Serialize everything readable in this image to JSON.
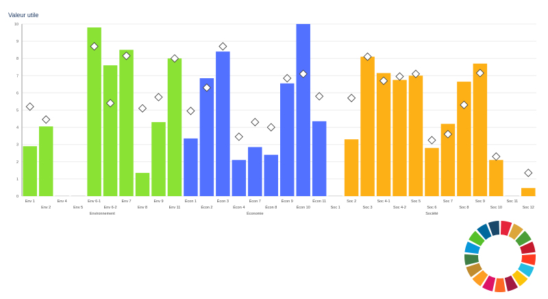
{
  "chart_data": {
    "type": "bar",
    "title": "Valeur utile",
    "ylim": [
      0,
      10
    ],
    "yticks": [
      0,
      1,
      2,
      3,
      4,
      5,
      6,
      7,
      8,
      9,
      10
    ],
    "grid": true,
    "categories": [
      "Env 1",
      "Env 2",
      "Env 4",
      "Env 5",
      "Env 6-1",
      "Env 6-2",
      "Env 7",
      "Env 8",
      "Env 9",
      "Env 11",
      "Écon 1",
      "Écon 2",
      "Écon 3",
      "Écon 4",
      "Écon 7",
      "Écon 8",
      "Écon 9",
      "Écon 10",
      "Écon 11",
      "Soc 1",
      "Soc 2",
      "Soc 3",
      "Soc 4-1",
      "Soc 4-2",
      "Soc 5",
      "Soc 6",
      "Soc 7",
      "Soc 8",
      "Soc 9",
      "Soc 10",
      "Soc 11",
      "Soc 12"
    ],
    "groups": [
      {
        "name": "Environnement",
        "count": 10,
        "color": "#8ae234"
      },
      {
        "name": "Économie",
        "count": 9,
        "color": "#5271ff"
      },
      {
        "name": "Société",
        "count": 13,
        "color": "#fdb015"
      }
    ],
    "bars": [
      2.9,
      4.05,
      0,
      0,
      9.8,
      7.6,
      8.5,
      1.35,
      4.3,
      8.0,
      3.35,
      6.85,
      8.4,
      2.1,
      2.85,
      2.4,
      6.55,
      10,
      4.35,
      0,
      3.3,
      8.1,
      7.15,
      6.75,
      7.0,
      2.8,
      4.2,
      6.65,
      7.7,
      2.1,
      0,
      0.47
    ],
    "markers": [
      5.2,
      4.45,
      null,
      null,
      8.7,
      5.4,
      8.15,
      5.1,
      5.75,
      8.0,
      4.95,
      6.3,
      8.7,
      3.45,
      4.3,
      4.0,
      6.85,
      7.1,
      5.8,
      null,
      5.7,
      8.1,
      6.7,
      6.95,
      7.1,
      3.25,
      3.6,
      5.3,
      7.15,
      2.3,
      null,
      1.35
    ]
  },
  "logo": {
    "colors": [
      "#e5243b",
      "#dda63a",
      "#4c9f38",
      "#c5192d",
      "#ff3a21",
      "#26bde2",
      "#fcc30b",
      "#a21942",
      "#fd6925",
      "#dd1367",
      "#fd9d24",
      "#bf8b2e",
      "#3f7e44",
      "#0a97d9",
      "#56c02b",
      "#00689d",
      "#19486a"
    ]
  }
}
